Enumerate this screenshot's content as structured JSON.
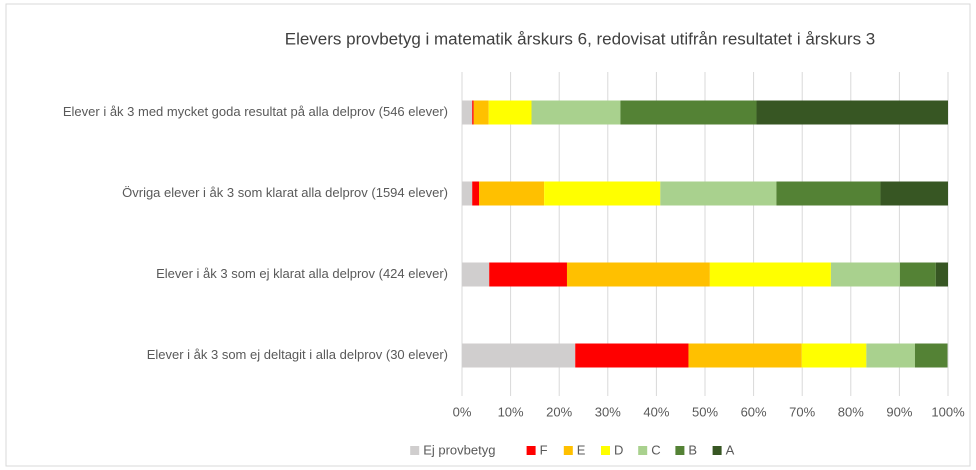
{
  "chart_data": {
    "type": "stacked_bar_horizontal",
    "title": "Elevers provbetyg  i matematik årskurs 6, redovisat utifrån resultatet i årskurs 3",
    "categories": [
      "Elever i åk 3 med mycket goda resultat på alla delprov (546 elever)",
      "Övriga elever i åk 3 som klarat alla delprov (1594 elever)",
      "Elever i åk 3 som ej klarat alla delprov (424 elever)",
      "Elever i åk 3 som ej deltagit i alla delprov (30 elever)"
    ],
    "series": [
      {
        "name": "Ej provbetyg",
        "color": "#d0cece",
        "values": [
          2.1,
          2.1,
          5.6,
          23.3
        ]
      },
      {
        "name": "F",
        "color": "#ff0000",
        "values": [
          0.3,
          1.4,
          16,
          23.3
        ]
      },
      {
        "name": "E",
        "color": "#ffc000",
        "values": [
          3.1,
          13.4,
          29.4,
          23.3
        ]
      },
      {
        "name": "D",
        "color": "#ffff00",
        "values": [
          8.8,
          23.9,
          24.9,
          13.3
        ]
      },
      {
        "name": "C",
        "color": "#a9d18e",
        "values": [
          18.3,
          23.9,
          14.2,
          10
        ]
      },
      {
        "name": "B",
        "color": "#548235",
        "values": [
          28,
          21.4,
          7.4,
          6.7
        ]
      },
      {
        "name": "A",
        "color": "#375623",
        "values": [
          39.4,
          13.9,
          2.5,
          0
        ]
      }
    ],
    "xlim": [
      0,
      100
    ],
    "xticks": [
      {
        "value": 0,
        "label": "0%"
      },
      {
        "value": 10,
        "label": "10%"
      },
      {
        "value": 20,
        "label": "20%"
      },
      {
        "value": 30,
        "label": "30%"
      },
      {
        "value": 40,
        "label": "40%"
      },
      {
        "value": 50,
        "label": "50%"
      },
      {
        "value": 60,
        "label": "60%"
      },
      {
        "value": 70,
        "label": "70%"
      },
      {
        "value": 80,
        "label": "80%"
      },
      {
        "value": 90,
        "label": "90%"
      },
      {
        "value": 100,
        "label": "100%"
      }
    ],
    "grid": true,
    "legend": "bottom"
  }
}
